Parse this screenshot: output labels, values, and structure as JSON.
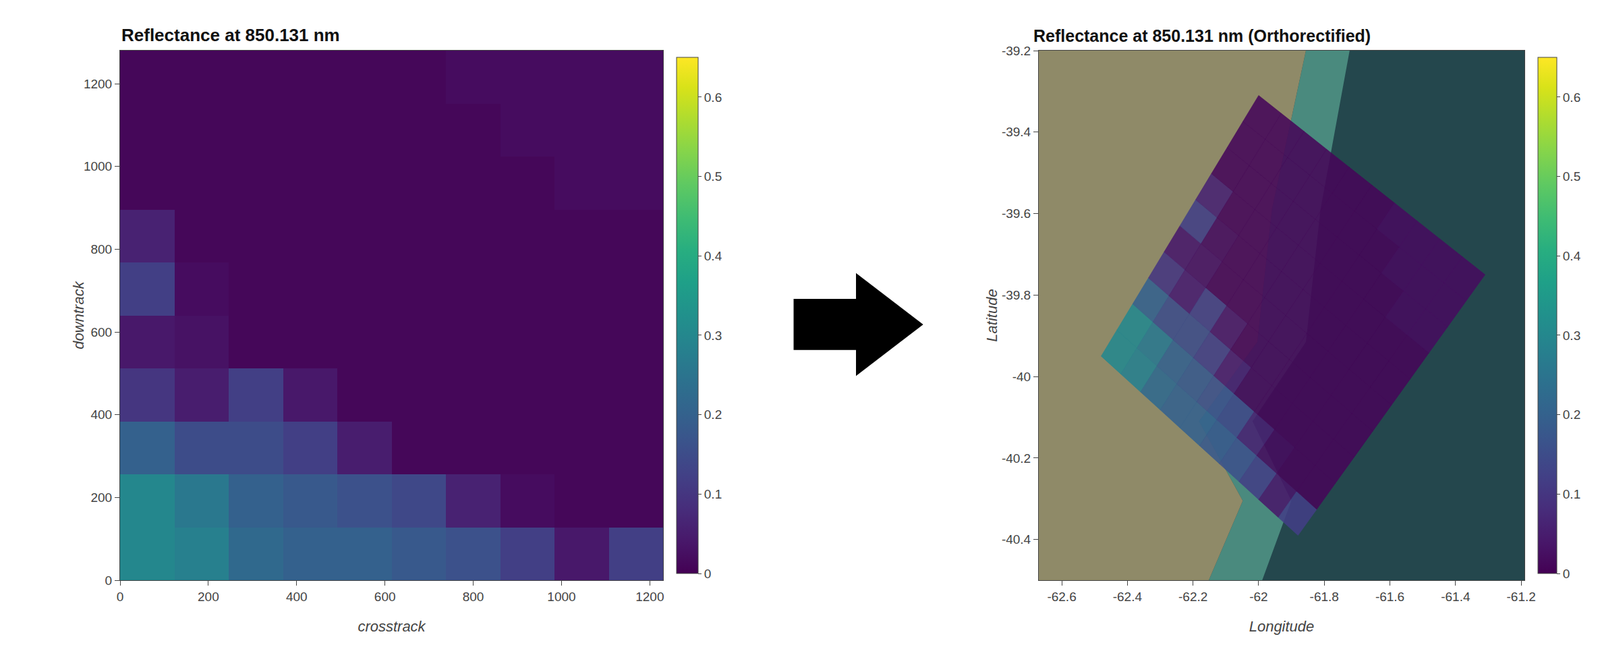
{
  "chart_data": [
    {
      "type": "heatmap",
      "title": "Reflectance at 850.131 nm",
      "x_label": "crosstrack",
      "y_label": "downtrack",
      "xlim": [
        0,
        1230
      ],
      "ylim": [
        0,
        1280
      ],
      "xticks": [
        0,
        200,
        400,
        600,
        800,
        1000,
        1200
      ],
      "yticks": [
        0,
        200,
        400,
        600,
        800,
        1000,
        1200
      ],
      "x": [
        61.5,
        184.5,
        307.5,
        430.5,
        553.5,
        676.5,
        799.5,
        922.5,
        1045.5,
        1168.5
      ],
      "y": [
        64,
        192,
        320,
        448,
        576,
        704,
        832,
        960,
        1088,
        1216
      ],
      "z": [
        [
          0.3,
          0.28,
          0.22,
          0.2,
          0.2,
          0.18,
          0.16,
          0.12,
          0.04,
          0.12
        ],
        [
          0.3,
          0.26,
          0.2,
          0.18,
          0.16,
          0.14,
          0.06,
          0.02,
          0.01,
          0.01
        ],
        [
          0.2,
          0.15,
          0.15,
          0.12,
          0.05,
          0.01,
          0.01,
          0.01,
          0.01,
          0.01
        ],
        [
          0.1,
          0.05,
          0.12,
          0.04,
          0.01,
          0.01,
          0.01,
          0.01,
          0.01,
          0.01
        ],
        [
          0.04,
          0.03,
          0.01,
          0.01,
          0.01,
          0.01,
          0.01,
          0.01,
          0.01,
          0.01
        ],
        [
          0.12,
          0.02,
          0.01,
          0.01,
          0.01,
          0.01,
          0.01,
          0.01,
          0.01,
          0.01
        ],
        [
          0.06,
          0.01,
          0.01,
          0.01,
          0.01,
          0.01,
          0.01,
          0.01,
          0.01,
          0.01
        ],
        [
          0.01,
          0.01,
          0.01,
          0.01,
          0.01,
          0.01,
          0.01,
          0.01,
          0.02,
          0.02
        ],
        [
          0.01,
          0.01,
          0.01,
          0.01,
          0.01,
          0.01,
          0.01,
          0.02,
          0.02,
          0.02
        ],
        [
          0.01,
          0.01,
          0.01,
          0.01,
          0.01,
          0.01,
          0.02,
          0.02,
          0.02,
          0.02
        ]
      ],
      "colorbar_range": [
        0,
        0.65
      ],
      "colorbar_ticks": [
        0,
        0.1,
        0.2,
        0.3,
        0.4,
        0.5,
        0.6
      ]
    },
    {
      "type": "map",
      "title": "Reflectance at 850.131 nm (Orthorectified)",
      "x_label": "Longitude",
      "y_label": "Latitude",
      "xlim": [
        -62.67,
        -61.19
      ],
      "ylim": [
        -40.5,
        -39.2
      ],
      "xticks": [
        -62.6,
        -62.4,
        -62.2,
        -62,
        -61.8,
        -61.6,
        -61.4,
        -61.2
      ],
      "yticks": [
        -40.4,
        -40.2,
        -40,
        -39.8,
        -39.6,
        -39.4,
        -39.2
      ],
      "footprint": {
        "lon": [
          -62.48,
          -61.88,
          -61.31,
          -62.0
        ],
        "lat": [
          -39.95,
          -40.39,
          -39.75,
          -39.31
        ]
      },
      "colorbar_range": [
        0,
        0.65
      ],
      "colorbar_ticks": [
        0,
        0.1,
        0.2,
        0.3,
        0.4,
        0.5,
        0.6
      ]
    }
  ]
}
